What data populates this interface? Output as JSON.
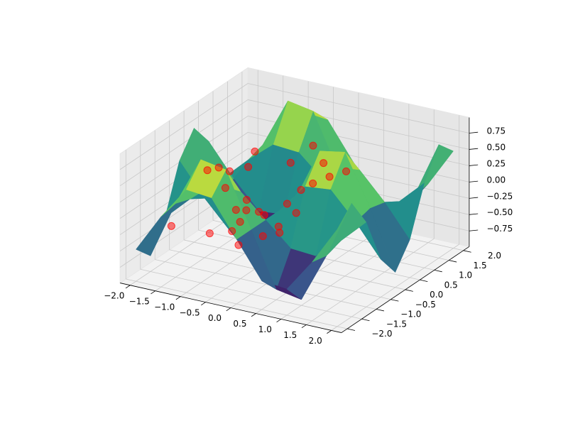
{
  "chart_data": {
    "type": "surface3d",
    "x": [
      -2,
      -1.5,
      -1,
      -0.5,
      0,
      0.5,
      1,
      1.5,
      2
    ],
    "y": [
      -2,
      -1.5,
      -1,
      -0.5,
      0,
      0.5,
      1,
      1.5,
      2
    ],
    "z": [
      [
        -0.5,
        0.09,
        0.59,
        0.55,
        0,
        -0.55,
        -0.59,
        -0.09,
        0.5
      ],
      [
        -0.75,
        0.14,
        0.9,
        0.83,
        0,
        -0.83,
        -0.9,
        -0.14,
        0.75
      ],
      [
        -0.31,
        0.06,
        0.38,
        0.35,
        0,
        -0.35,
        -0.38,
        -0.06,
        0.31
      ],
      [
        0.41,
        -0.08,
        -0.49,
        -0.45,
        0,
        0.45,
        0.49,
        0.08,
        -0.41
      ],
      [
        0.76,
        -0.14,
        -0.91,
        -0.84,
        0,
        0.84,
        0.91,
        0.14,
        -0.76
      ],
      [
        0.41,
        -0.08,
        -0.49,
        -0.45,
        0,
        0.45,
        0.49,
        0.08,
        -0.41
      ],
      [
        -0.31,
        0.06,
        0.38,
        0.35,
        0,
        -0.35,
        -0.38,
        -0.06,
        0.31
      ],
      [
        -0.75,
        0.14,
        0.9,
        0.83,
        0,
        -0.83,
        -0.9,
        -0.14,
        0.75
      ],
      [
        -0.5,
        0.09,
        0.59,
        0.55,
        0,
        -0.55,
        -0.59,
        -0.09,
        0.5
      ]
    ],
    "cmap": "viridis",
    "scatter": {
      "color": "#ff0000",
      "x": [
        -1.6,
        -1.5,
        -1.3,
        -1.2,
        -1.0,
        -0.9,
        -0.8,
        -0.7,
        -0.6,
        -0.5,
        -0.4,
        -0.3,
        -0.2,
        -0.1,
        0.0,
        0.1,
        -0.6,
        -0.9,
        -1.1,
        -1.4,
        -0.3,
        0.2,
        0.3,
        0.4,
        -1.7,
        -0.5,
        -1.0,
        -0.2
      ],
      "y": [
        1.4,
        1.0,
        0.6,
        0.2,
        -0.2,
        -0.6,
        -1.0,
        -1.4,
        -1.2,
        -0.8,
        -0.4,
        0.0,
        0.4,
        0.8,
        1.2,
        1.6,
        0.9,
        1.3,
        -1.1,
        -0.5,
        -1.5,
        -0.9,
        -0.3,
        0.3,
        -1.3,
        1.5,
        0.5,
        -0.7
      ],
      "z": [
        0.05,
        -0.05,
        -0.4,
        -0.6,
        -0.8,
        -0.45,
        0.35,
        0.8,
        0.7,
        0.0,
        -0.5,
        -0.55,
        -0.35,
        0.0,
        0.0,
        -0.02,
        0.2,
        -0.6,
        0.6,
        -0.6,
        0.25,
        -0.1,
        0.3,
        0.55,
        -0.3,
        0.3,
        -0.5,
        -0.05
      ]
    },
    "xlim": [
      -2.2,
      2.2
    ],
    "ylim": [
      -2.2,
      2.2
    ],
    "zlim": [
      -0.99,
      0.99
    ],
    "xticks": [
      {
        "value": -2,
        "label": "−2.0"
      },
      {
        "value": -1.5,
        "label": "−1.5"
      },
      {
        "value": -1,
        "label": "−1.0"
      },
      {
        "value": -0.5,
        "label": "−0.5"
      },
      {
        "value": 0,
        "label": "0.0"
      },
      {
        "value": 0.5,
        "label": "0.5"
      },
      {
        "value": 1,
        "label": "1.0"
      },
      {
        "value": 1.5,
        "label": "1.5"
      },
      {
        "value": 2,
        "label": "2.0"
      }
    ],
    "yticks": [
      {
        "value": -2,
        "label": "−2.0"
      },
      {
        "value": -1.5,
        "label": "−1.5"
      },
      {
        "value": -1,
        "label": "−1.0"
      },
      {
        "value": -0.5,
        "label": "−0.5"
      },
      {
        "value": 0,
        "label": "0.0"
      },
      {
        "value": 0.5,
        "label": "0.5"
      },
      {
        "value": 1,
        "label": "1.0"
      },
      {
        "value": 1.5,
        "label": "1.5"
      },
      {
        "value": 2,
        "label": "2.0"
      }
    ],
    "zticks": [
      {
        "value": -0.75,
        "label": "−0.75"
      },
      {
        "value": -0.5,
        "label": "−0.50"
      },
      {
        "value": -0.25,
        "label": "−0.25"
      },
      {
        "value": 0,
        "label": "0.00"
      },
      {
        "value": 0.25,
        "label": "0.25"
      },
      {
        "value": 0.5,
        "label": "0.50"
      },
      {
        "value": 0.75,
        "label": "0.75"
      }
    ],
    "grid": true
  }
}
